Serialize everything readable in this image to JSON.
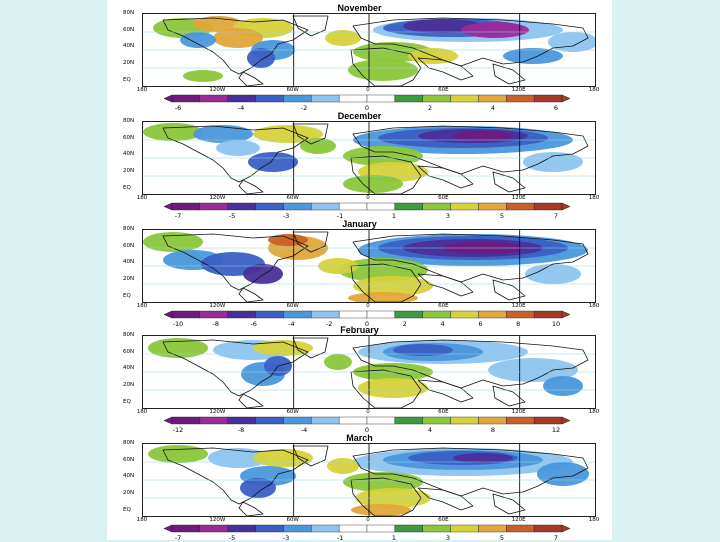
{
  "panels": [
    {
      "title": "November",
      "lat_labels": [
        "80N",
        "60N",
        "40N",
        "20N",
        "EQ"
      ],
      "lon_labels": [
        "180",
        "120W",
        "60W",
        "0",
        "60E",
        "120E",
        "180"
      ],
      "ticks": [
        "-6",
        "-4",
        "-2",
        "0",
        "2",
        "4",
        "6"
      ]
    },
    {
      "title": "December",
      "lat_labels": [
        "80N",
        "60N",
        "40N",
        "20N",
        "EQ"
      ],
      "lon_labels": [
        "180",
        "120W",
        "60W",
        "0",
        "60E",
        "120E",
        "180"
      ],
      "ticks": [
        "-7",
        "-5",
        "-3",
        "-1",
        "1",
        "3",
        "5",
        "7"
      ]
    },
    {
      "title": "January",
      "lat_labels": [
        "80N",
        "60N",
        "40N",
        "20N",
        "EQ"
      ],
      "lon_labels": [
        "180",
        "120W",
        "60W",
        "0",
        "60E",
        "120E",
        "180"
      ],
      "ticks": [
        "-10",
        "-8",
        "-6",
        "-4",
        "-2",
        "0",
        "2",
        "4",
        "6",
        "8",
        "10"
      ]
    },
    {
      "title": "February",
      "lat_labels": [
        "80N",
        "60N",
        "40N",
        "20N",
        "EQ"
      ],
      "lon_labels": [
        "180",
        "120W",
        "60W",
        "0",
        "60E",
        "120E",
        "180"
      ],
      "ticks": [
        "-12",
        "-8",
        "-4",
        "0",
        "4",
        "8",
        "12"
      ]
    },
    {
      "title": "March",
      "lat_labels": [
        "80N",
        "60N",
        "40N",
        "20N",
        "EQ"
      ],
      "lon_labels": [
        "180",
        "120W",
        "60W",
        "0",
        "60E",
        "120E",
        "180"
      ],
      "ticks": [
        "-7",
        "-5",
        "-3",
        "-1",
        "1",
        "3",
        "5",
        "7"
      ]
    }
  ],
  "colors": {
    "background": "#d9f1f1",
    "scale": [
      "#6e1a80",
      "#9b2a9b",
      "#4a2f9a",
      "#3b5fc4",
      "#4a97dc",
      "#8ec4ee",
      "#ffffff",
      "#ffffff",
      "#3e9a3e",
      "#8cc63a",
      "#d6d23a",
      "#e2a63a",
      "#c8602a",
      "#a63a26"
    ]
  }
}
